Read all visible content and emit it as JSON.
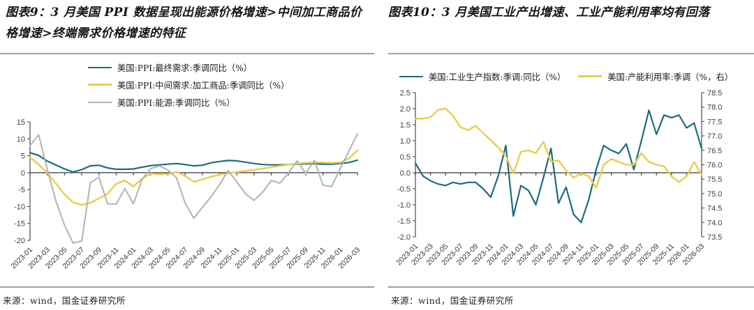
{
  "panels": [
    {
      "title": "图表9：3 月美国 PPI 数据呈现出能源价格增速>中间加工商品价格增速>终端需求价格增速的特征",
      "source": "来源：wind，国金证券研究所"
    },
    {
      "title": "图表10：3 月美国工业产出增速、工业产能利用率均有回落",
      "source": "来源：wind，国金证券研究所"
    }
  ],
  "chart_data": [
    {
      "type": "line",
      "title": "图表9：3 月美国 PPI 数据呈现出能源价格增速>中间加工商品价格增速>终端需求价格增速的特征",
      "legend_position": "top",
      "legend_layout": "stack",
      "grid": false,
      "n_points": 39,
      "x_label_step": 2,
      "x_labels": [
        "2023-01",
        "2023-03",
        "2023-05",
        "2023-07",
        "2023-09",
        "2023-11",
        "2024-01",
        "2024-03",
        "2024-05",
        "2024-07",
        "2024-09",
        "2024-11",
        "2025-01",
        "2025-03",
        "2025-05",
        "2025-07",
        "2025-09",
        "2025-11",
        "2026-01",
        "2026-03"
      ],
      "ylim_left": [
        -20,
        15
      ],
      "yticks_left": [
        "15",
        "10",
        "5",
        "0",
        "-5",
        "-10",
        "-15",
        "-20"
      ],
      "series": [
        {
          "key": "ppi-final-demand",
          "name": "美国:PPI:最终需求:季调同比（%）",
          "color": "#1d6b7d",
          "axis": "left",
          "width": 2.2,
          "values": [
            5.9,
            5.1,
            3.4,
            2.3,
            1.1,
            0.2,
            0.9,
            2.0,
            2.2,
            1.4,
            1.0,
            1.0,
            1.1,
            1.6,
            2.1,
            2.3,
            2.5,
            2.7,
            2.4,
            2.0,
            2.2,
            2.9,
            3.3,
            3.6,
            3.5,
            3.1,
            2.7,
            2.4,
            2.3,
            2.3,
            2.4,
            2.5,
            2.6,
            2.6,
            2.5,
            2.5,
            2.7,
            3.0,
            3.7
          ]
        },
        {
          "key": "ppi-intermediate-processed-goods",
          "name": "美国:PPI:中间需求:加工商品:季调同比（%）",
          "color": "#e9ce52",
          "axis": "left",
          "width": 2.5,
          "values": [
            4.6,
            2.4,
            0.0,
            -3.2,
            -6.4,
            -8.8,
            -9.5,
            -8.9,
            -7.6,
            -6.2,
            -3.3,
            -2.3,
            -4.1,
            -1.8,
            -0.3,
            -0.5,
            -0.4,
            0.2,
            -1.0,
            -2.7,
            -2.0,
            -1.2,
            -0.6,
            -0.2,
            0.2,
            0.5,
            0.8,
            1.2,
            1.6,
            2.0,
            2.4,
            2.7,
            2.9,
            3.0,
            3.0,
            2.9,
            3.0,
            4.2,
            6.6
          ]
        },
        {
          "key": "ppi-energy",
          "name": "美国:PPI:能源:季调同比（%）",
          "color": "#b2b2b2",
          "axis": "left",
          "width": 2.0,
          "values": [
            8.0,
            11.2,
            1.0,
            -8.3,
            -15.5,
            -20.8,
            -20.2,
            -3.0,
            -1.3,
            -9.2,
            -9.3,
            -4.7,
            -9.2,
            -2.0,
            1.2,
            2.0,
            0.8,
            -1.5,
            -9.0,
            -13.5,
            -10.3,
            -7.2,
            -3.5,
            0.6,
            -2.7,
            -6.2,
            -8.2,
            -5.8,
            -2.3,
            -3.1,
            0.0,
            3.5,
            -0.2,
            3.6,
            -3.7,
            -4.1,
            1.2,
            6.4,
            11.5
          ]
        }
      ]
    },
    {
      "type": "line",
      "title": "图表10：3 月美国工业产出增速、工业产能利用率均有回落",
      "legend_position": "top",
      "legend_layout": "row",
      "grid": false,
      "n_points": 39,
      "x_label_step": 2,
      "x_labels": [
        "2023-01",
        "2023-03",
        "2023-05",
        "2023-07",
        "2023-09",
        "2023-11",
        "2024-01",
        "2024-03",
        "2024-05",
        "2024-07",
        "2024-09",
        "2024-11",
        "2025-01",
        "2025-03",
        "2025-05",
        "2025-07",
        "2025-09",
        "2025-11",
        "2026-01",
        "2026-03"
      ],
      "ylim_left": [
        -2.0,
        2.5
      ],
      "yticks_left": [
        "2.5",
        "2.0",
        "1.5",
        "1.0",
        "0.5",
        "0.0",
        "-0.5",
        "-1.0",
        "-1.5",
        "-2.0"
      ],
      "ylim_right": [
        73.5,
        78.5
      ],
      "yticks_right": [
        "78.5",
        "78.0",
        "77.5",
        "77.0",
        "76.5",
        "76.0",
        "75.5",
        "75.0",
        "74.5",
        "74.0",
        "73.5"
      ],
      "series": [
        {
          "key": "industrial-production-index-yoy",
          "name": "美国:工业生产指数:季调:同比（%）",
          "color": "#1d6b7d",
          "axis": "left",
          "width": 2.2,
          "values": [
            0.3,
            -0.1,
            -0.25,
            -0.35,
            -0.4,
            -0.3,
            -0.35,
            -0.3,
            -0.3,
            -0.5,
            -0.76,
            -0.1,
            0.85,
            -1.35,
            -0.4,
            -0.55,
            -1.0,
            -0.15,
            0.76,
            -0.95,
            -0.45,
            -1.3,
            -1.55,
            -0.85,
            0.1,
            0.85,
            0.7,
            0.6,
            0.9,
            0.1,
            1.0,
            1.95,
            1.2,
            1.8,
            1.72,
            1.8,
            1.4,
            1.55,
            0.75
          ]
        },
        {
          "key": "capacity-utilization",
          "name": "美国:产能利用率:季调（%，右）",
          "color": "#e9ce52",
          "axis": "right",
          "width": 2.5,
          "values": [
            77.6,
            77.6,
            77.65,
            77.9,
            77.95,
            77.7,
            77.3,
            77.2,
            77.35,
            77.1,
            76.85,
            76.6,
            76.3,
            75.7,
            76.45,
            76.5,
            76.4,
            76.8,
            76.1,
            76.15,
            75.8,
            75.55,
            75.7,
            75.6,
            75.2,
            76.0,
            76.2,
            76.1,
            76.0,
            76.0,
            76.4,
            76.1,
            76.0,
            75.95,
            75.6,
            75.4,
            75.6,
            76.1,
            75.65
          ]
        }
      ]
    }
  ],
  "style": {
    "accent_teal": "#1d6b7d",
    "accent_yellow": "#e9ce52",
    "accent_gray": "#b2b2b2",
    "axis_color": "#595959",
    "tick_label_color": "#3d3d3d"
  }
}
